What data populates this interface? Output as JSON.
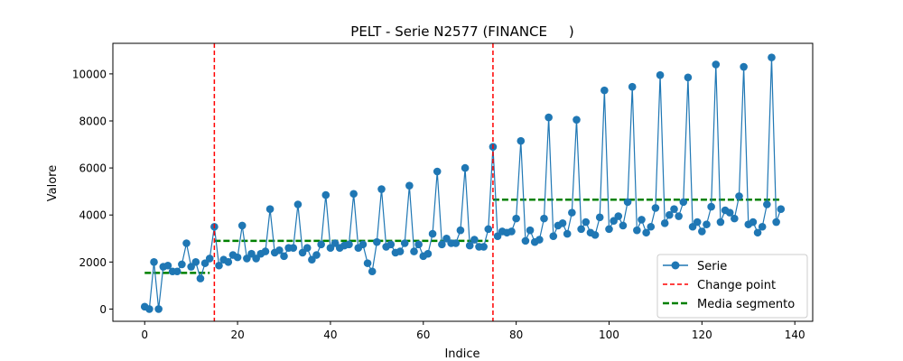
{
  "chart_data": {
    "type": "line",
    "title": "PELT - Serie N2577 (FINANCE     )",
    "xlabel": "Indice",
    "ylabel": "Valore",
    "xlim": [
      -6.85,
      143.85
    ],
    "ylim": [
      -520,
      11300
    ],
    "x_ticks": [
      0,
      20,
      40,
      60,
      80,
      100,
      120,
      140
    ],
    "y_ticks": [
      0,
      2000,
      4000,
      6000,
      8000,
      10000
    ],
    "grid": false,
    "legend_position": "lower right",
    "series": [
      {
        "name": "Serie",
        "color": "#1f77b4",
        "marker": "circle",
        "x": [
          0,
          1,
          2,
          3,
          4,
          5,
          6,
          7,
          8,
          9,
          10,
          11,
          12,
          13,
          14,
          15,
          16,
          17,
          18,
          19,
          20,
          21,
          22,
          23,
          24,
          25,
          26,
          27,
          28,
          29,
          30,
          31,
          32,
          33,
          34,
          35,
          36,
          37,
          38,
          39,
          40,
          41,
          42,
          43,
          44,
          45,
          46,
          47,
          48,
          49,
          50,
          51,
          52,
          53,
          54,
          55,
          56,
          57,
          58,
          59,
          60,
          61,
          62,
          63,
          64,
          65,
          66,
          67,
          68,
          69,
          70,
          71,
          72,
          73,
          74,
          75,
          76,
          77,
          78,
          79,
          80,
          81,
          82,
          83,
          84,
          85,
          86,
          87,
          88,
          89,
          90,
          91,
          92,
          93,
          94,
          95,
          96,
          97,
          98,
          99,
          100,
          101,
          102,
          103,
          104,
          105,
          106,
          107,
          108,
          109,
          110,
          111,
          112,
          113,
          114,
          115,
          116,
          117,
          118,
          119,
          120,
          121,
          122,
          123,
          124,
          125,
          126,
          127,
          128,
          129,
          130,
          131,
          132,
          133,
          134,
          135,
          136,
          137
        ],
        "values": [
          100,
          0,
          2000,
          0,
          1800,
          1850,
          1600,
          1600,
          1900,
          2800,
          1800,
          2000,
          1300,
          1950,
          2150,
          3500,
          1850,
          2100,
          2000,
          2300,
          2200,
          3550,
          2150,
          2350,
          2150,
          2350,
          2450,
          4250,
          2400,
          2500,
          2250,
          2600,
          2600,
          4450,
          2400,
          2600,
          2100,
          2300,
          2750,
          4850,
          2600,
          2800,
          2600,
          2700,
          2750,
          4900,
          2600,
          2750,
          1950,
          1600,
          2850,
          5100,
          2650,
          2750,
          2400,
          2450,
          2800,
          5250,
          2450,
          2750,
          2250,
          2350,
          3200,
          5850,
          2750,
          3000,
          2800,
          2800,
          3350,
          6000,
          2700,
          2950,
          2650,
          2650,
          3400,
          6900,
          3100,
          3300,
          3250,
          3300,
          3850,
          7150,
          2900,
          3350,
          2850,
          2950,
          3850,
          8150,
          3100,
          3550,
          3650,
          3200,
          4100,
          8050,
          3400,
          3700,
          3250,
          3150,
          3900,
          9300,
          3400,
          3750,
          3950,
          3550,
          4550,
          9450,
          3350,
          3800,
          3250,
          3500,
          4300,
          9950,
          3650,
          4000,
          4250,
          3950,
          4550,
          9850,
          3500,
          3700,
          3300,
          3600,
          4350,
          10400,
          3700,
          4200,
          4100,
          3850,
          4800,
          10300,
          3600,
          3700,
          3250,
          3500,
          4450,
          10700,
          3700,
          4250
        ]
      }
    ],
    "change_points": {
      "name": "Change point",
      "color": "#ff0000",
      "x": [
        15,
        75
      ]
    },
    "segment_means": {
      "name": "Media segmento",
      "color": "#008000",
      "segments": [
        {
          "x_start": 0,
          "x_end": 14,
          "value": 1540
        },
        {
          "x_start": 15,
          "x_end": 74,
          "value": 2900
        },
        {
          "x_start": 75,
          "x_end": 137,
          "value": 4650
        }
      ]
    }
  }
}
